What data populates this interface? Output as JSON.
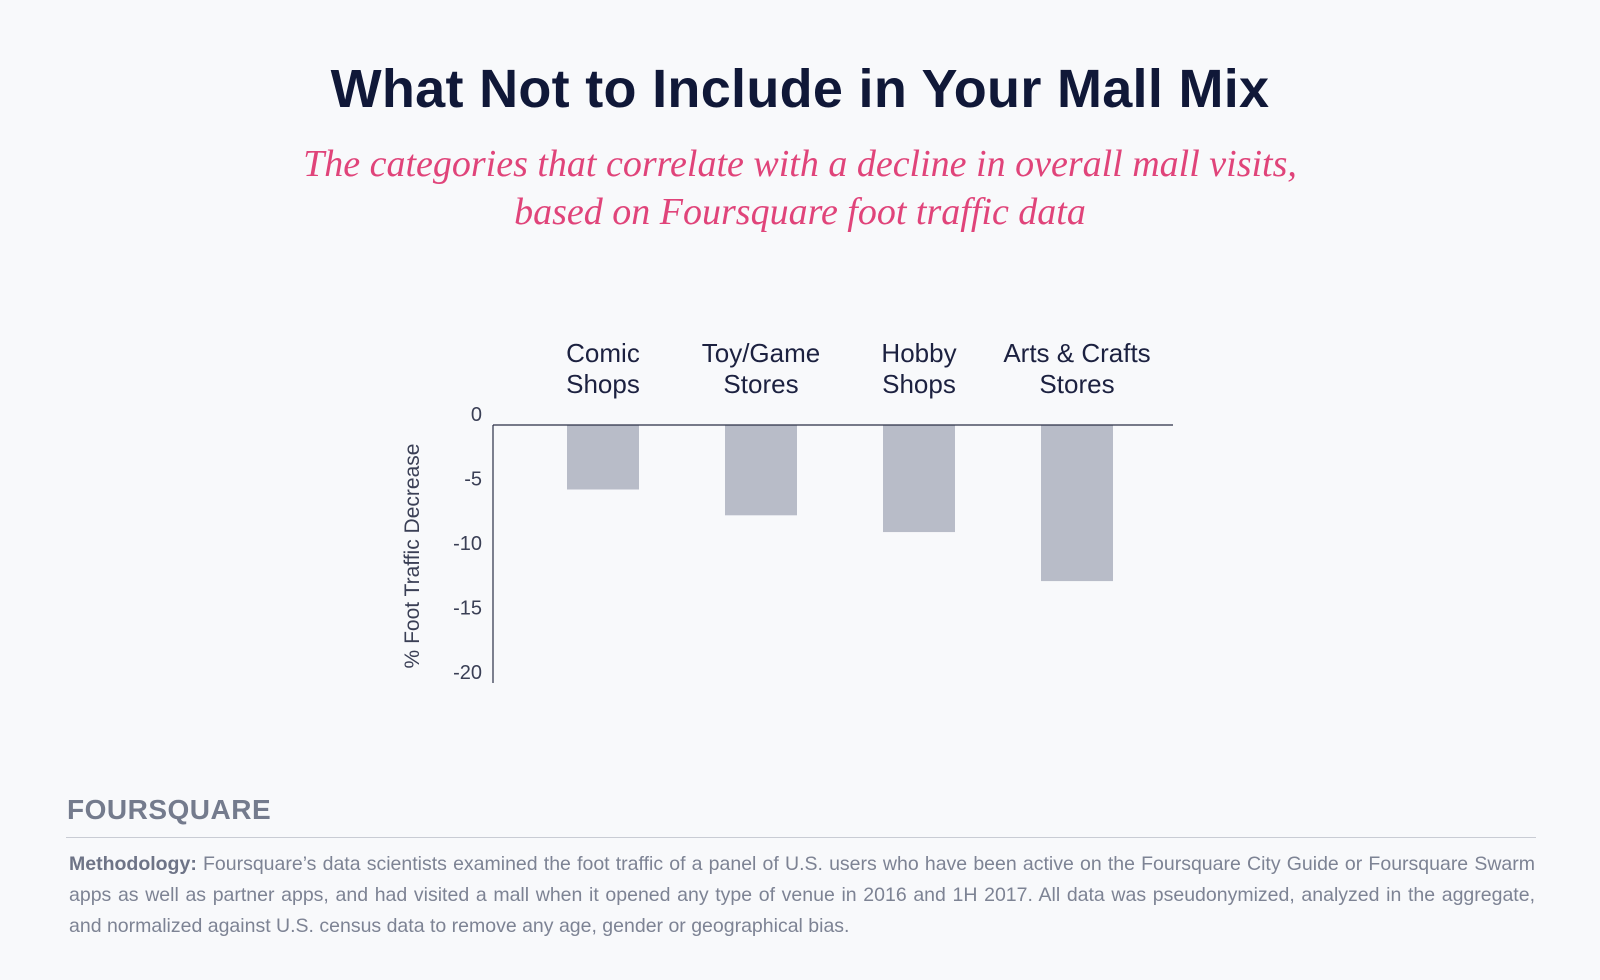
{
  "title": "What Not to Include in Your Mall Mix",
  "subtitle_lines": [
    "The categories that correlate with a decline in overall mall visits,",
    "based on Foursquare foot traffic data"
  ],
  "brand": "FOURSQUARE",
  "methodology": {
    "label": "Methodology:",
    "text": "Foursquare’s data scientists examined the foot traffic of a panel of U.S. users who have been active on the Foursquare City Guide or Foursquare Swarm apps as well as partner apps, and had visited a mall when it opened any type of venue in 2016 and 1H 2017. All data was pseudonymized, analyzed in the aggregate, and normalized against U.S. census data to remove any age, gender or geographical bias."
  },
  "colors": {
    "title": "#101838",
    "subtitle": "#e0447a",
    "bar": "#b8bcc8",
    "axis": "#2a2f45",
    "tick_text": "#3a3f55"
  },
  "chart_data": {
    "type": "bar",
    "categories": [
      [
        "Comic",
        "Shops"
      ],
      [
        "Toy/Game",
        "Stores"
      ],
      [
        "Hobby",
        "Shops"
      ],
      [
        "Arts & Crafts",
        "Stores"
      ]
    ],
    "values": [
      -5.0,
      -7.0,
      -8.3,
      -12.1
    ],
    "ylabel": "% Foot Traffic Decrease",
    "ylim": [
      -20,
      0
    ],
    "yticks": [
      0,
      -5,
      -10,
      -15,
      -20
    ],
    "grid": false,
    "legend": false,
    "category_labels_position": "top"
  }
}
